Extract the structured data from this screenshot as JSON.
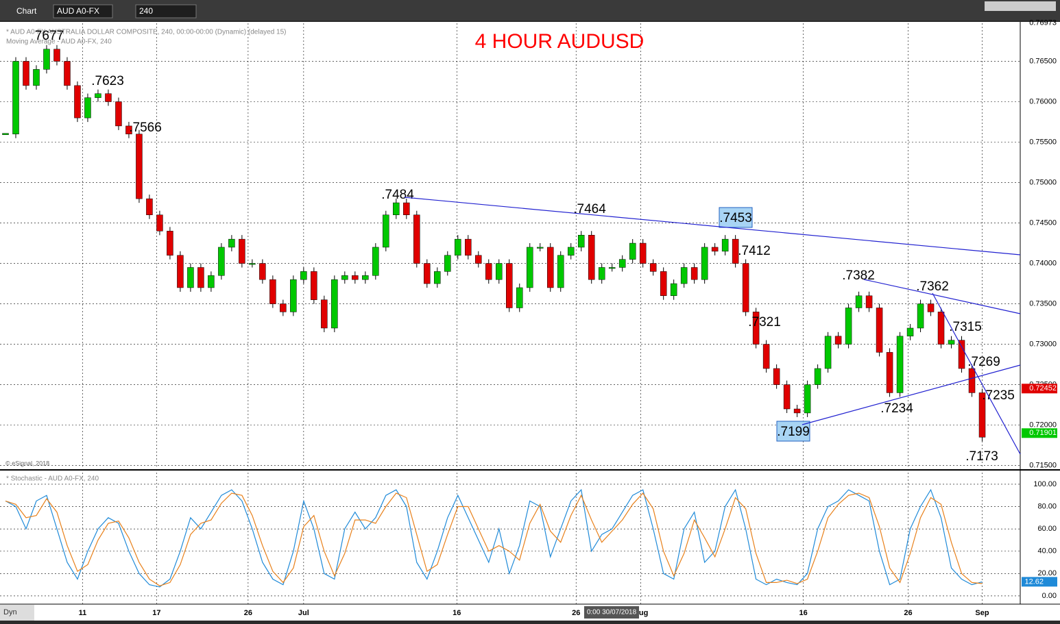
{
  "toolbar": {
    "app": "Chart",
    "symbol": "AUD A0-FX",
    "interval": "240",
    "mode": "Dyn"
  },
  "chart_data": [
    {
      "type": "candlestick",
      "title": "4 HOUR AUDUSD",
      "subtitle": [
        "* AUD A0-FX AUSTRALIA DOLLAR COMPOSITE, 240, 00:00-00:00 (Dynamic) (delayed 15)",
        "Moving Average - AUD A0-FX, 240"
      ],
      "credit": "© eSignal, 2018",
      "crosshair_label": "0:00 30/07/2018",
      "up_color": "#00c800",
      "down_color": "#e00000",
      "xlim": [
        -0.2,
        98.7
      ],
      "xticks": [
        {
          "value": 7.5,
          "label": "11"
        },
        {
          "value": 14.7,
          "label": "17"
        },
        {
          "value": 23.6,
          "label": "26"
        },
        {
          "value": 29,
          "label": "Jul"
        },
        {
          "value": 43.9,
          "label": "16"
        },
        {
          "value": 55.5,
          "label": "26"
        },
        {
          "value": 61.8,
          "label": "Aug"
        },
        {
          "value": 77.6,
          "label": "16"
        },
        {
          "value": 87.8,
          "label": "26"
        },
        {
          "value": 95,
          "label": "Sep"
        }
      ],
      "ylim": [
        0.7148,
        0.7697
      ],
      "yticks": [
        {
          "value": 0.715,
          "label": "0.71500"
        },
        {
          "value": 0.72,
          "label": "0.72000"
        },
        {
          "value": 0.725,
          "label": "0.72500"
        },
        {
          "value": 0.73,
          "label": "0.73000"
        },
        {
          "value": 0.735,
          "label": "0.73500"
        },
        {
          "value": 0.74,
          "label": "0.74000"
        },
        {
          "value": 0.745,
          "label": "0.74500"
        },
        {
          "value": 0.75,
          "label": "0.75000"
        },
        {
          "value": 0.755,
          "label": "0.75500"
        },
        {
          "value": 0.76,
          "label": "0.76000"
        },
        {
          "value": 0.765,
          "label": "0.76500"
        },
        {
          "value": 0.76973,
          "label": "0.76973"
        }
      ],
      "grid": true,
      "price_markers": [
        {
          "value": 0.72452,
          "label": "0.72452",
          "color": "#e00000"
        },
        {
          "value": 0.71901,
          "label": "0.71901",
          "color": "#00c800"
        }
      ],
      "annotations": [
        "7677",
        ".7623",
        ".7566",
        ".7484",
        ".7464",
        ".7453",
        ".7412",
        ".7321",
        ".7382",
        ".7362",
        ".7315",
        ".7269",
        ".7235",
        ".7234",
        ".7199",
        ".7173"
      ],
      "series": [
        {
          "values": [
            0.756,
            0.765,
            0.762,
            0.764,
            0.7665,
            0.765,
            0.762,
            0.758,
            0.7605,
            0.761,
            0.76,
            0.757,
            0.756,
            0.748,
            0.746,
            0.744,
            0.741,
            0.737,
            0.7395,
            0.737,
            0.7385,
            0.742,
            0.743,
            0.74,
            0.74,
            0.738,
            0.735,
            0.734,
            0.738,
            0.739,
            0.7355,
            0.732,
            0.738,
            0.7385,
            0.738,
            0.7385,
            0.742,
            0.746,
            0.7475,
            0.746,
            0.74,
            0.7375,
            0.739,
            0.741,
            0.743,
            0.741,
            0.74,
            0.738,
            0.74,
            0.7345,
            0.737,
            0.742,
            0.742,
            0.737,
            0.741,
            0.742,
            0.7435,
            0.738,
            0.7395,
            0.7395,
            0.7405,
            0.7425,
            0.74,
            0.739,
            0.736,
            0.7375,
            0.7395,
            0.738,
            0.742,
            0.7415,
            0.743,
            0.74,
            0.734,
            0.73,
            0.727,
            0.725,
            0.722,
            0.7215,
            0.725,
            0.727,
            0.731,
            0.73,
            0.7345,
            0.736,
            0.7345,
            0.729,
            0.724,
            0.731,
            0.732,
            0.735,
            0.734,
            0.73,
            0.7305,
            0.727,
            0.724,
            0.7185
          ]
        }
      ]
    },
    {
      "type": "line",
      "title": "* Stochastic - AUD A0-FX, 240",
      "xlim": [
        -0.2,
        98.7
      ],
      "ylim": [
        -7.4,
        110.4
      ],
      "yticks": [
        {
          "value": 0,
          "label": "0.00"
        },
        {
          "value": 20,
          "label": "20.00"
        },
        {
          "value": 40,
          "label": "40.00"
        },
        {
          "value": 60,
          "label": "60.00"
        },
        {
          "value": 80,
          "label": "80.00"
        },
        {
          "value": 100,
          "label": "100.00"
        }
      ],
      "grid": true,
      "value_marker": {
        "value": 12.62,
        "label": "12.62",
        "color": "#1f8ad8"
      },
      "series": [
        {
          "color": "#1f8ad8",
          "values": [
            85,
            80,
            60,
            85,
            90,
            60,
            30,
            15,
            40,
            60,
            70,
            65,
            40,
            20,
            10,
            8,
            15,
            40,
            70,
            60,
            75,
            90,
            95,
            85,
            60,
            30,
            15,
            10,
            40,
            85,
            60,
            20,
            15,
            60,
            75,
            60,
            70,
            90,
            95,
            80,
            30,
            15,
            40,
            70,
            90,
            70,
            50,
            30,
            60,
            20,
            45,
            85,
            80,
            35,
            60,
            85,
            95,
            40,
            55,
            60,
            75,
            90,
            95,
            60,
            20,
            15,
            60,
            75,
            30,
            40,
            80,
            95,
            60,
            15,
            10,
            15,
            12,
            10,
            20,
            60,
            80,
            85,
            95,
            90,
            85,
            40,
            10,
            15,
            60,
            80,
            95,
            70,
            25,
            15,
            10,
            12.62
          ]
        },
        {
          "color": "#e8801a",
          "values": [
            85,
            82,
            70,
            72,
            87,
            75,
            45,
            22,
            28,
            50,
            65,
            67,
            52,
            30,
            15,
            9,
            12,
            28,
            55,
            65,
            68,
            83,
            92,
            90,
            72,
            45,
            22,
            12,
            25,
            62,
            72,
            40,
            18,
            38,
            68,
            68,
            65,
            80,
            92,
            88,
            55,
            22,
            28,
            55,
            80,
            80,
            60,
            40,
            45,
            40,
            32,
            65,
            82,
            58,
            48,
            72,
            90,
            68,
            48,
            58,
            68,
            82,
            92,
            78,
            40,
            18,
            38,
            68,
            52,
            35,
            60,
            88,
            78,
            38,
            12,
            12,
            14,
            11,
            15,
            40,
            70,
            82,
            90,
            92,
            88,
            62,
            25,
            12,
            38,
            70,
            88,
            82,
            48,
            20,
            12,
            11
          ]
        }
      ]
    }
  ]
}
